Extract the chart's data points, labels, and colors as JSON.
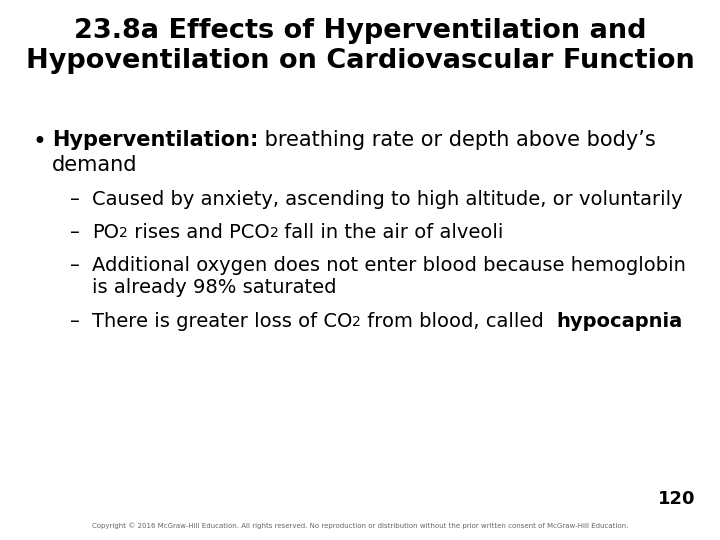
{
  "title_line1": "23.8a Effects of Hyperventilation and",
  "title_line2": "Hypoventilation on Cardiovascular Function",
  "background_color": "#ffffff",
  "title_color": "#000000",
  "text_color": "#000000",
  "title_fontsize": 19.5,
  "body_fontsize": 15,
  "sub_fontsize": 14,
  "page_number": "120",
  "copyright": "Copyright © 2016 McGraw-Hill Education. All rights reserved. No reproduction or distribution without the prior written consent of McGraw-Hill Education."
}
